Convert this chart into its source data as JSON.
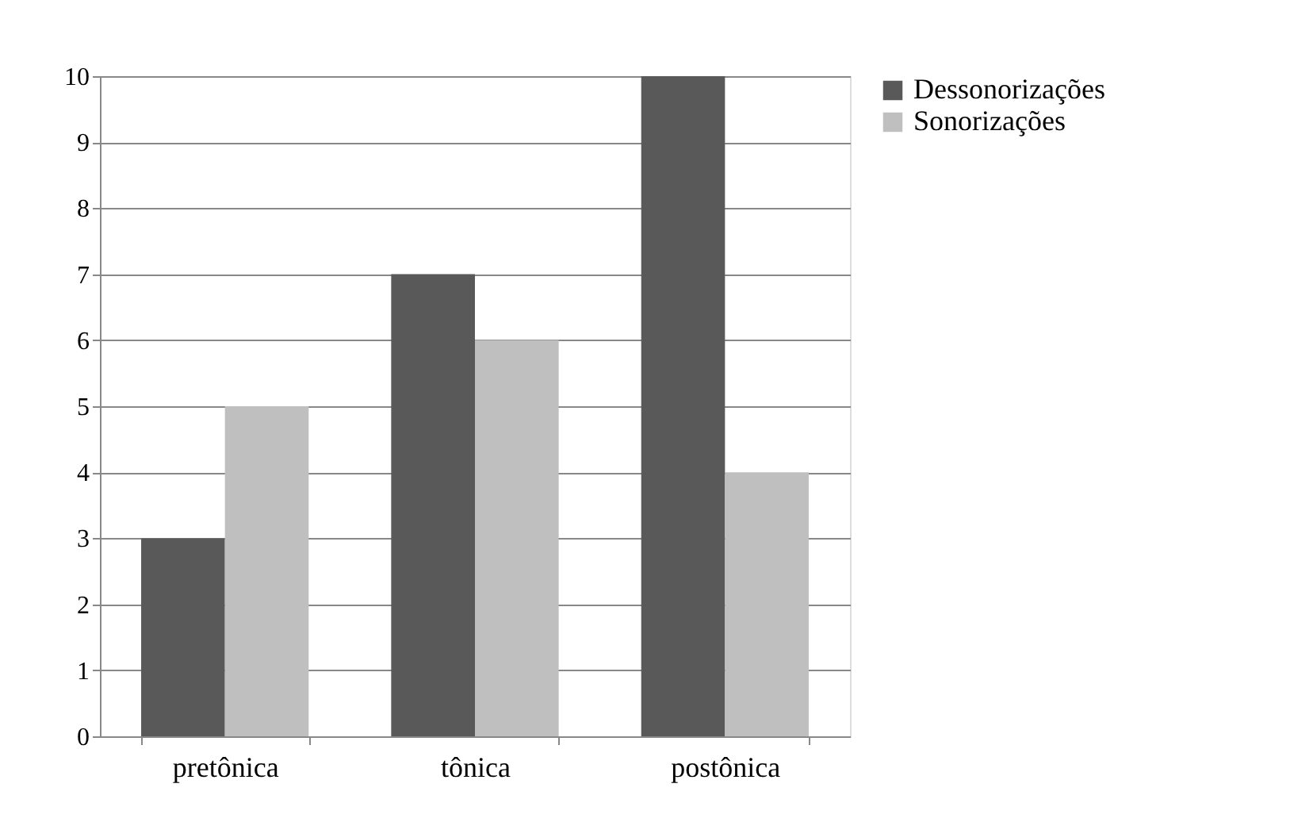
{
  "chart_data": {
    "type": "bar",
    "categories": [
      "pretônica",
      "tônica",
      "postônica"
    ],
    "series": [
      {
        "name": "Dessonorizações",
        "color": "#595959",
        "values": [
          3,
          7,
          10
        ]
      },
      {
        "name": "Sonorizações",
        "color": "#bfbfbf",
        "values": [
          5,
          6,
          4
        ]
      }
    ],
    "ylim": [
      0,
      10
    ],
    "yticks": [
      0,
      1,
      2,
      3,
      4,
      5,
      6,
      7,
      8,
      9,
      10
    ],
    "grid": "y",
    "legend": "right"
  }
}
